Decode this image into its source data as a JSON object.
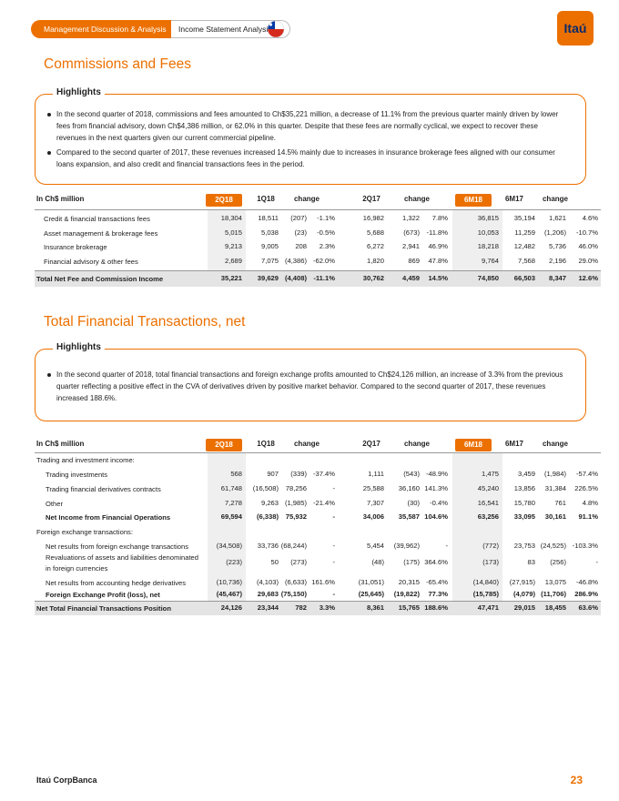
{
  "header": {
    "tabs": [
      "Management Discussion & Analysis",
      "Income Statement Analysis"
    ],
    "logo": "Itaú"
  },
  "sections": [
    {
      "title": "Commissions and Fees",
      "highlights": {
        "label": "Highlights",
        "bullets": [
          "In the second quarter of 2018, commissions and fees amounted to Ch$35,221 million, a decrease of 11.1% from the previous quarter mainly driven by lower fees from financial advisory, down Ch$4,386 million, or 62.0% in this quarter.  Despite that these fees are normally cyclical, we expect to recover these revenues in the next quarters given our current commercial pipeline.",
          "Compared to the second quarter of 2017, these revenues increased 14.5% mainly due to increases in insurance brokerage fees aligned with our consumer loans expansion, and also credit and financial transactions fees in the period."
        ]
      },
      "table": {
        "columns": [
          "In Ch$ million",
          "2Q18",
          "1Q18",
          "change",
          "2Q17",
          "change",
          "6M18",
          "6M17",
          "change"
        ],
        "rows": [
          {
            "label": "Credit & financial transactions fees",
            "values": [
              "18,304",
              "18,511",
              "(207)",
              "-1.1%",
              "16,982",
              "1,322",
              "7.8%",
              "36,815",
              "35,194",
              "1,621",
              "4.6%"
            ]
          },
          {
            "label": "Asset management & brokerage fees",
            "values": [
              "5,015",
              "5,038",
              "(23)",
              "-0.5%",
              "5,688",
              "(673)",
              "-11.8%",
              "10,053",
              "11,259",
              "(1,206)",
              "-10.7%"
            ]
          },
          {
            "label": "Insurance brokerage",
            "values": [
              "9,213",
              "9,005",
              "208",
              "2.3%",
              "6,272",
              "2,941",
              "46.9%",
              "18,218",
              "12,482",
              "5,736",
              "46.0%"
            ]
          },
          {
            "label": "Financial advisory & other fees",
            "values": [
              "2,689",
              "7,075",
              "(4,386)",
              "-62.0%",
              "1,820",
              "869",
              "47.8%",
              "9,764",
              "7,568",
              "2,196",
              "29.0%"
            ]
          },
          {
            "label": "Total Net Fee and Commission Income",
            "values": [
              "35,221",
              "39,629",
              "(4,408)",
              "-11.1%",
              "30,762",
              "4,459",
              "14.5%",
              "74,850",
              "66,503",
              "8,347",
              "12.6%"
            ]
          }
        ]
      }
    },
    {
      "title": "Total Financial Transactions, net",
      "highlights": {
        "label": "Highlights",
        "bullets": [
          "In the second quarter of 2018, total financial transactions and foreign exchange profits amounted to Ch$24,126 million, an increase of 3.3% from the previous quarter reflecting a positive effect in the CVA of derivatives driven by positive market behavior. Compared to the second quarter of 2017, these revenues increased 188.6%."
        ]
      },
      "table": {
        "columns": [
          "In Ch$ million",
          "2Q18",
          "1Q18",
          "change",
          "2Q17",
          "change",
          "6M18",
          "6M17",
          "change"
        ],
        "rows": [
          {
            "label": "Trading and investment income:"
          },
          {
            "label": "Trading investments",
            "values": [
              "568",
              "907",
              "(339)",
              "-37.4%",
              "1,111",
              "(543)",
              "-48.9%",
              "1,475",
              "3,459",
              "(1,984)",
              "-57.4%"
            ]
          },
          {
            "label": "Trading financial derivatives contracts",
            "values": [
              "61,748",
              "(16,508)",
              "78,256",
              "-",
              "25,588",
              "36,160",
              "141.3%",
              "45,240",
              "13,856",
              "31,384",
              "226.5%"
            ]
          },
          {
            "label": "Other",
            "values": [
              "7,278",
              "9,263",
              "(1,985)",
              "-21.4%",
              "7,307",
              "(30)",
              "-0.4%",
              "16,541",
              "15,780",
              "761",
              "4.8%"
            ]
          },
          {
            "label": "Net Income from Financial Operations",
            "values": [
              "69,594",
              "(6,338)",
              "75,932",
              "-",
              "34,006",
              "35,587",
              "104.6%",
              "63,256",
              "33,095",
              "30,161",
              "91.1%"
            ]
          },
          {
            "label": "Foreign exchange transactions:"
          },
          {
            "label": "Net results from foreign exchange transactions",
            "values": [
              "(34,508)",
              "33,736",
              "(68,244)",
              "-",
              "5,454",
              "(39,962)",
              "-",
              "(772)",
              "23,753",
              "(24,525)",
              "-103.3%"
            ]
          },
          {
            "label": "Revaluations of assets and liabilities denominated in foreign currencies",
            "values": [
              "(223)",
              "50",
              "(273)",
              "-",
              "(48)",
              "(175)",
              "364.6%",
              "(173)",
              "83",
              "(256)",
              "-"
            ]
          },
          {
            "label": "Net results from accounting hedge derivatives",
            "values": [
              "(10,736)",
              "(4,103)",
              "(6,633)",
              "161.6%",
              "(31,051)",
              "20,315",
              "-65.4%",
              "(14,840)",
              "(27,915)",
              "13,075",
              "-46.8%"
            ]
          },
          {
            "label": "Foreign Exchange Profit (loss), net",
            "values": [
              "(45,467)",
              "29,683",
              "(75,150)",
              "-",
              "(25,645)",
              "(19,822)",
              "77.3%",
              "(15,785)",
              "(4,079)",
              "(11,706)",
              "286.9%"
            ]
          },
          {
            "label": "Net Total Financial Transactions Position",
            "values": [
              "24,126",
              "23,344",
              "782",
              "3.3%",
              "8,361",
              "15,765",
              "188.6%",
              "47,471",
              "29,015",
              "18,455",
              "63.6%"
            ]
          }
        ]
      }
    }
  ],
  "footer": {
    "company": "Itaú CorpBanca",
    "page": "23"
  }
}
